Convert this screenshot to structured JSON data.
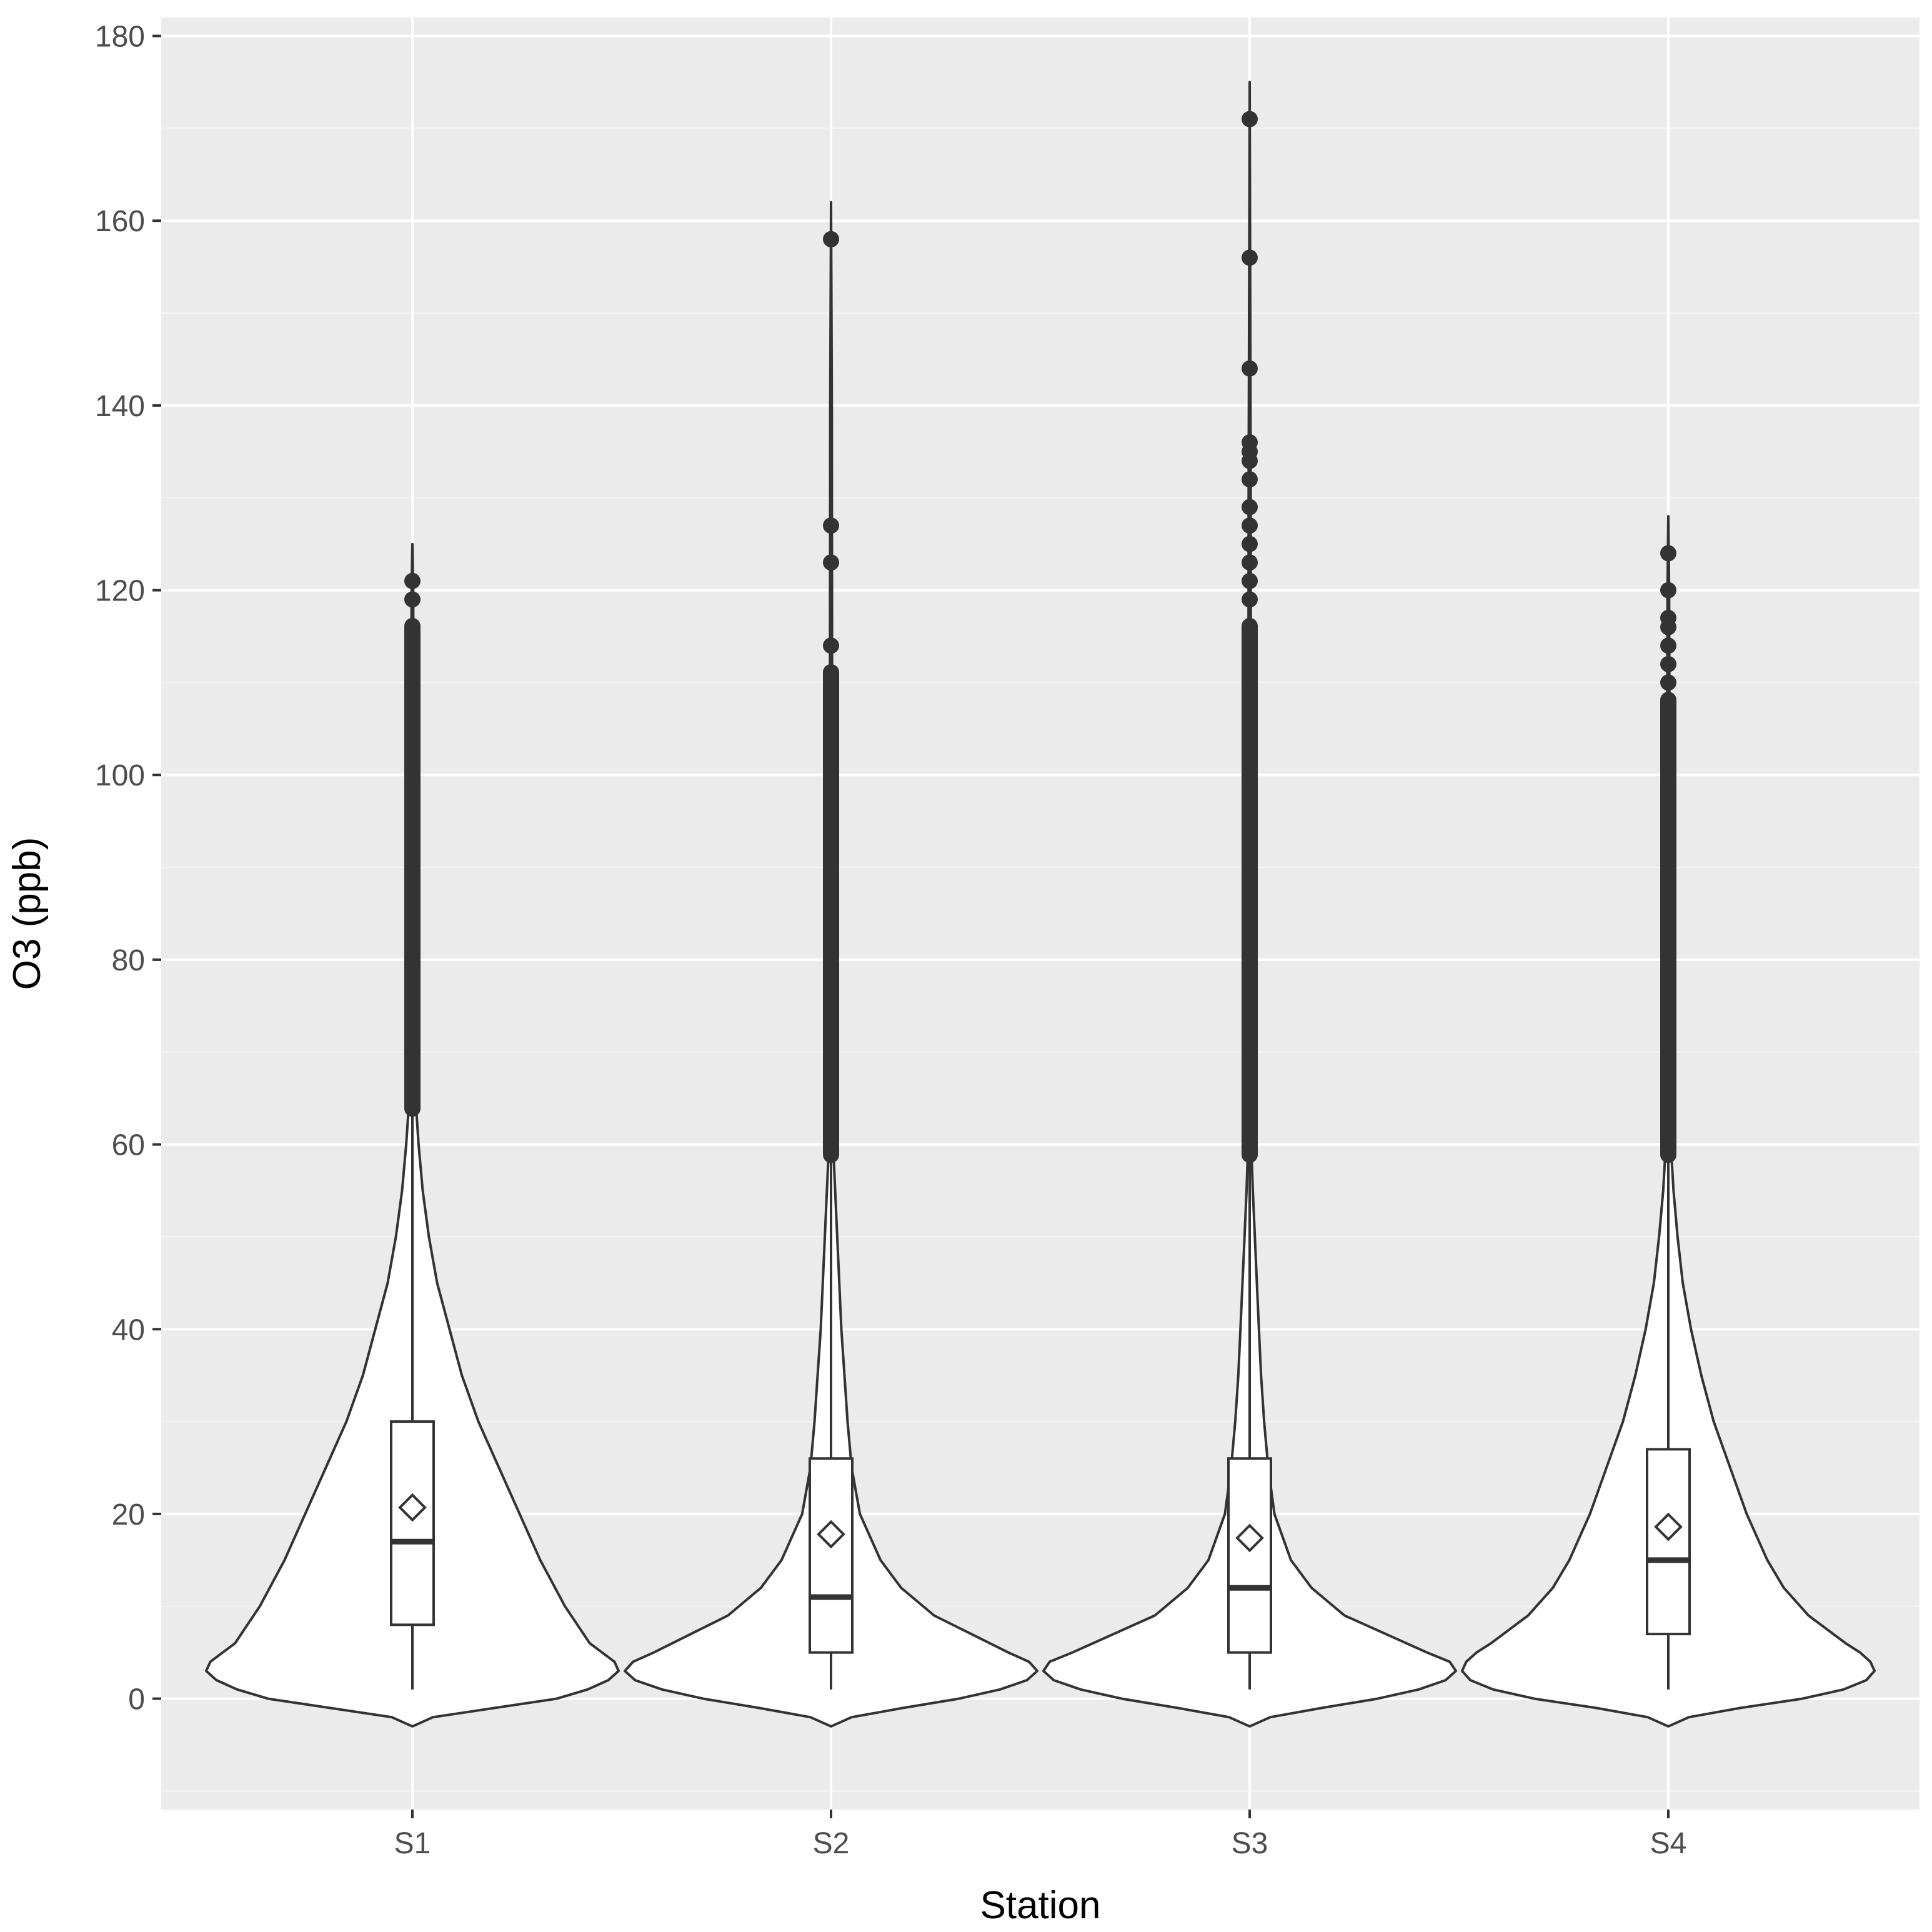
{
  "chart_data": {
    "type": "violin",
    "title": "",
    "xlabel": "Station",
    "ylabel": "O3 (ppb)",
    "ylim": [
      -12,
      182
    ],
    "yticks": [
      0,
      20,
      40,
      60,
      80,
      100,
      120,
      140,
      160,
      180
    ],
    "grid": true,
    "legend": "none",
    "colors": {
      "panel_bg": "#ebebeb",
      "grid_major": "#ffffff",
      "grid_minor": "#f5f5f5",
      "violin_fill": "#ffffff",
      "stroke": "#333333",
      "tick_label": "#4d4d4d"
    },
    "categories": [
      "S1",
      "S2",
      "S3",
      "S4"
    ],
    "series": [
      {
        "category": "S1",
        "box": {
          "q1": 8,
          "median": 17,
          "q3": 30,
          "whisker_low": 1,
          "whisker_high": 63
        },
        "mean": 20.7,
        "violin_range": [
          -3,
          125
        ],
        "violin_profile": [
          [
            -3,
            0
          ],
          [
            -2,
            0.1
          ],
          [
            -1,
            0.4
          ],
          [
            0,
            0.7
          ],
          [
            1,
            0.85
          ],
          [
            2,
            0.95
          ],
          [
            3,
            1.0
          ],
          [
            4,
            0.98
          ],
          [
            5,
            0.92
          ],
          [
            6,
            0.86
          ],
          [
            8,
            0.8
          ],
          [
            10,
            0.74
          ],
          [
            15,
            0.62
          ],
          [
            20,
            0.52
          ],
          [
            25,
            0.42
          ],
          [
            30,
            0.32
          ],
          [
            35,
            0.24
          ],
          [
            40,
            0.18
          ],
          [
            45,
            0.12
          ],
          [
            50,
            0.08
          ],
          [
            55,
            0.05
          ],
          [
            60,
            0.03
          ],
          [
            65,
            0.015
          ],
          [
            80,
            0.01
          ],
          [
            100,
            0.006
          ],
          [
            120,
            0.004
          ],
          [
            125,
            0
          ]
        ],
        "outlier_range": [
          63,
          117
        ],
        "outliers_sparse": [
          119,
          121
        ]
      },
      {
        "category": "S2",
        "box": {
          "q1": 5,
          "median": 11,
          "q3": 26,
          "whisker_low": 1,
          "whisker_high": 58
        },
        "mean": 17.8,
        "violin_range": [
          -3,
          162
        ],
        "violin_profile": [
          [
            -3,
            0
          ],
          [
            -2,
            0.1
          ],
          [
            -1,
            0.35
          ],
          [
            0,
            0.62
          ],
          [
            1,
            0.82
          ],
          [
            2,
            0.95
          ],
          [
            3,
            1.0
          ],
          [
            4,
            0.96
          ],
          [
            5,
            0.86
          ],
          [
            7,
            0.68
          ],
          [
            9,
            0.5
          ],
          [
            12,
            0.34
          ],
          [
            15,
            0.24
          ],
          [
            20,
            0.14
          ],
          [
            25,
            0.1
          ],
          [
            30,
            0.08
          ],
          [
            35,
            0.065
          ],
          [
            40,
            0.05
          ],
          [
            45,
            0.04
          ],
          [
            50,
            0.03
          ],
          [
            55,
            0.02
          ],
          [
            60,
            0.01
          ],
          [
            80,
            0.007
          ],
          [
            110,
            0.005
          ],
          [
            140,
            0.004
          ],
          [
            162,
            0
          ]
        ],
        "outlier_range": [
          58,
          112
        ],
        "outliers_sparse": [
          114,
          123,
          127,
          158
        ]
      },
      {
        "category": "S3",
        "box": {
          "q1": 5,
          "median": 12,
          "q3": 26,
          "whisker_low": 1,
          "whisker_high": 58
        },
        "mean": 17.4,
        "violin_range": [
          -3,
          175
        ],
        "violin_profile": [
          [
            -3,
            0
          ],
          [
            -2,
            0.1
          ],
          [
            -1,
            0.35
          ],
          [
            0,
            0.62
          ],
          [
            1,
            0.82
          ],
          [
            2,
            0.95
          ],
          [
            3,
            1.0
          ],
          [
            4,
            0.97
          ],
          [
            5,
            0.86
          ],
          [
            7,
            0.66
          ],
          [
            9,
            0.46
          ],
          [
            12,
            0.3
          ],
          [
            15,
            0.2
          ],
          [
            20,
            0.12
          ],
          [
            25,
            0.09
          ],
          [
            30,
            0.07
          ],
          [
            35,
            0.055
          ],
          [
            40,
            0.045
          ],
          [
            45,
            0.035
          ],
          [
            50,
            0.025
          ],
          [
            55,
            0.015
          ],
          [
            60,
            0.008
          ],
          [
            90,
            0.006
          ],
          [
            130,
            0.005
          ],
          [
            175,
            0
          ]
        ],
        "outlier_range": [
          58,
          117
        ],
        "outliers_sparse": [
          119,
          121,
          123,
          125,
          127,
          129,
          132,
          134,
          135,
          136,
          144,
          156,
          171
        ]
      },
      {
        "category": "S4",
        "box": {
          "q1": 7,
          "median": 15,
          "q3": 27,
          "whisker_low": 1,
          "whisker_high": 58
        },
        "mean": 18.6,
        "violin_range": [
          -3,
          128
        ],
        "violin_profile": [
          [
            -3,
            0
          ],
          [
            -2,
            0.1
          ],
          [
            -1,
            0.35
          ],
          [
            0,
            0.65
          ],
          [
            1,
            0.85
          ],
          [
            2,
            0.96
          ],
          [
            3,
            1.0
          ],
          [
            4,
            0.98
          ],
          [
            5,
            0.93
          ],
          [
            6,
            0.86
          ],
          [
            7,
            0.8
          ],
          [
            9,
            0.68
          ],
          [
            12,
            0.56
          ],
          [
            15,
            0.48
          ],
          [
            20,
            0.38
          ],
          [
            25,
            0.3
          ],
          [
            30,
            0.22
          ],
          [
            35,
            0.16
          ],
          [
            40,
            0.11
          ],
          [
            45,
            0.07
          ],
          [
            50,
            0.045
          ],
          [
            55,
            0.025
          ],
          [
            60,
            0.012
          ],
          [
            80,
            0.008
          ],
          [
            100,
            0.006
          ],
          [
            120,
            0.004
          ],
          [
            128,
            0
          ]
        ],
        "outlier_range": [
          58,
          109
        ],
        "outliers_sparse": [
          110,
          112,
          114,
          116,
          117,
          120,
          124
        ]
      }
    ]
  }
}
